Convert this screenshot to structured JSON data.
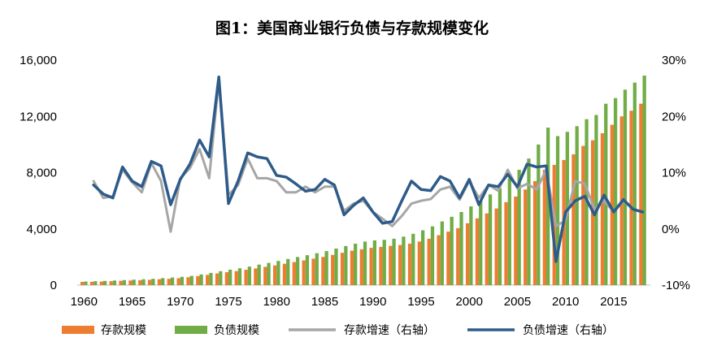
{
  "chart_data": {
    "type": "bar+line",
    "title": "图1：美国商业银行负债与存款规模变化",
    "years": [
      1960,
      1961,
      1962,
      1963,
      1964,
      1965,
      1966,
      1967,
      1968,
      1969,
      1970,
      1971,
      1972,
      1973,
      1974,
      1975,
      1976,
      1977,
      1978,
      1979,
      1980,
      1981,
      1982,
      1983,
      1984,
      1985,
      1986,
      1987,
      1988,
      1989,
      1990,
      1991,
      1992,
      1993,
      1994,
      1995,
      1996,
      1997,
      1998,
      1999,
      2000,
      2001,
      2002,
      2003,
      2004,
      2005,
      2006,
      2007,
      2008,
      2009,
      2010,
      2011,
      2012,
      2013,
      2014,
      2015,
      2016,
      2017,
      2018
    ],
    "x_tick_labels": [
      "1960",
      "1965",
      "1970",
      "1975",
      "1980",
      "1985",
      "1990",
      "1995",
      "2000",
      "2005",
      "2010",
      "2015"
    ],
    "y_left": {
      "min": 0,
      "max": 16000,
      "ticks": [
        0,
        4000,
        8000,
        12000,
        16000
      ],
      "tick_labels": [
        "0",
        "4,000",
        "8,000",
        "12,000",
        "16,000"
      ]
    },
    "y_right": {
      "min": -10,
      "max": 30,
      "ticks": [
        -10,
        0,
        10,
        20,
        30
      ],
      "tick_labels": [
        "-10%",
        "0%",
        "10%",
        "20%",
        "30%"
      ]
    },
    "series": [
      {
        "name": "存款规模",
        "kind": "bar",
        "axis": "left",
        "color": "#ED7D31",
        "values": [
          230,
          240,
          255,
          280,
          305,
          330,
          350,
          380,
          420,
          450,
          490,
          560,
          640,
          730,
          830,
          920,
          1000,
          1090,
          1190,
          1300,
          1400,
          1520,
          1640,
          1760,
          1880,
          2000,
          2150,
          2300,
          2450,
          2550,
          2650,
          2720,
          2790,
          2850,
          2950,
          3100,
          3300,
          3550,
          3800,
          4050,
          4400,
          4750,
          5100,
          5450,
          5900,
          6300,
          6800,
          7400,
          8200,
          8550,
          8900,
          9300,
          9900,
          10300,
          10800,
          11400,
          12000,
          12400,
          12900
        ]
      },
      {
        "name": "负债规模",
        "kind": "bar",
        "axis": "left",
        "color": "#70AD47",
        "values": [
          260,
          280,
          300,
          330,
          360,
          390,
          420,
          450,
          500,
          540,
          590,
          660,
          760,
          870,
          990,
          1100,
          1200,
          1320,
          1460,
          1580,
          1720,
          1860,
          2000,
          2130,
          2270,
          2420,
          2600,
          2780,
          2950,
          3100,
          3180,
          3220,
          3300,
          3450,
          3650,
          3900,
          4180,
          4530,
          4860,
          5200,
          5600,
          6000,
          6450,
          6900,
          7600,
          8200,
          9000,
          10000,
          11200,
          10600,
          10900,
          11300,
          11800,
          12100,
          12900,
          13300,
          13900,
          14400,
          14900
        ]
      },
      {
        "name": "存款增速（右轴）",
        "kind": "line",
        "axis": "right",
        "color": "#A6A6A6",
        "values": [
          null,
          8.5,
          5.5,
          5.8,
          10.5,
          8.3,
          6.5,
          11.7,
          8.5,
          -0.5,
          9.0,
          10.8,
          14.2,
          9.0,
          26.5,
          6.0,
          7.8,
          12.5,
          9.0,
          9.0,
          8.5,
          6.5,
          6.5,
          7.5,
          6.5,
          7.5,
          7.5,
          3.2,
          4.5,
          5.0,
          3.0,
          1.8,
          0.5,
          2.3,
          4.5,
          5.0,
          5.3,
          7.0,
          7.5,
          5.2,
          8.5,
          5.5,
          7.8,
          6.8,
          10.5,
          7.2,
          8.0,
          7.0,
          10.5,
          0.5,
          1.5,
          8.5,
          8.0,
          3.5,
          5.0,
          3.0,
          5.0,
          3.5,
          3.0
        ]
      },
      {
        "name": "负债增速（右轴）",
        "kind": "line",
        "axis": "right",
        "color": "#2E5B8A",
        "values": [
          null,
          7.8,
          6.2,
          5.5,
          11.0,
          8.5,
          7.5,
          12.0,
          11.2,
          4.3,
          8.8,
          11.5,
          15.8,
          12.8,
          27.0,
          4.5,
          8.5,
          13.5,
          12.8,
          12.5,
          9.5,
          9.2,
          8.0,
          6.7,
          7.0,
          8.8,
          7.8,
          2.5,
          4.2,
          5.5,
          3.0,
          1.0,
          1.3,
          5.0,
          8.5,
          7.0,
          6.8,
          9.3,
          8.5,
          5.5,
          8.8,
          4.3,
          7.8,
          7.5,
          9.7,
          7.5,
          11.5,
          11.0,
          11.2,
          -5.8,
          3.0,
          5.0,
          5.8,
          2.5,
          6.0,
          3.0,
          5.2,
          3.5,
          3.0
        ]
      }
    ],
    "legend": {
      "position": "bottom"
    }
  }
}
